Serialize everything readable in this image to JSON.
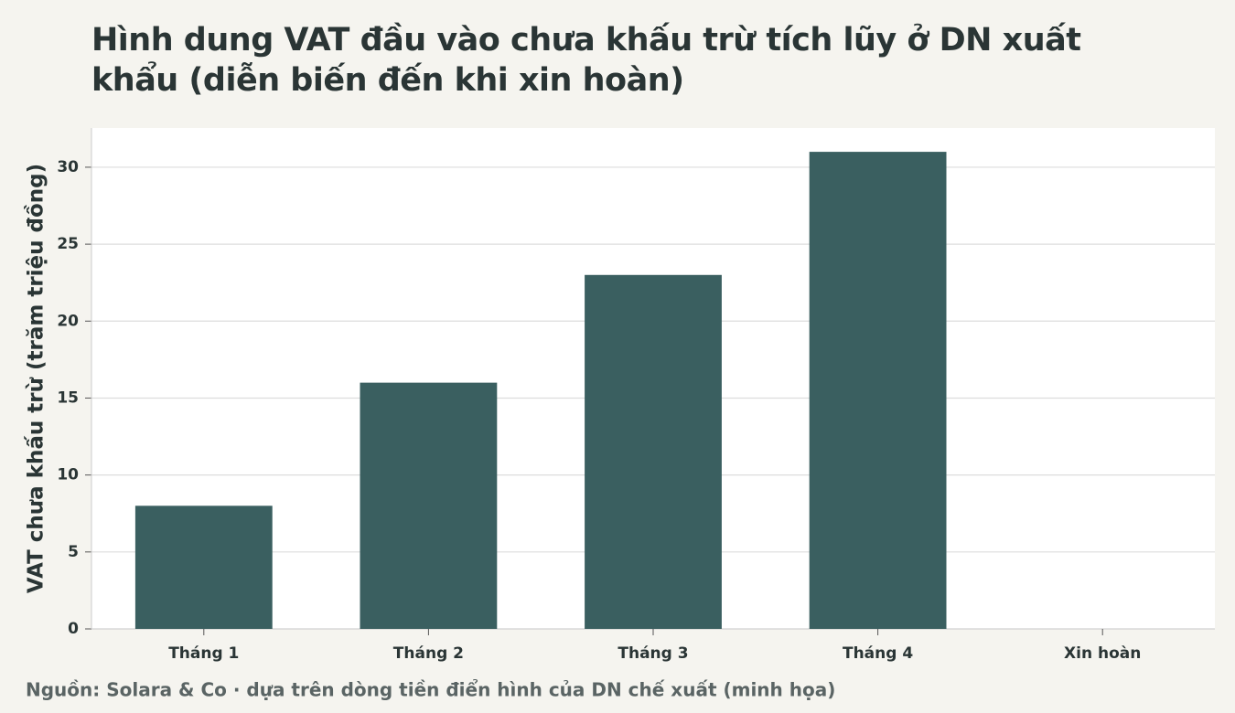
{
  "chart_data": {
    "type": "bar",
    "title": "Hình dung VAT đầu vào chưa khấu trừ tích lũy ở DN xuất khẩu (diễn biến đến khi xin hoàn)",
    "y_label": "VAT chưa khấu trừ (trăm triệu đồng)",
    "source": "Nguồn: Solara & Co · dựa trên dòng tiền điển hình của DN chế xuất (minh họa)",
    "categories": [
      "Tháng 1",
      "Tháng 2",
      "Tháng 3",
      "Tháng 4",
      "Xin hoàn"
    ],
    "values": [
      8,
      16,
      23,
      31,
      0
    ],
    "color": "#3a5f60",
    "ylim": [
      0,
      32.55
    ],
    "yticks": [
      0,
      5,
      10,
      15,
      20,
      25,
      30
    ],
    "grid": true
  }
}
